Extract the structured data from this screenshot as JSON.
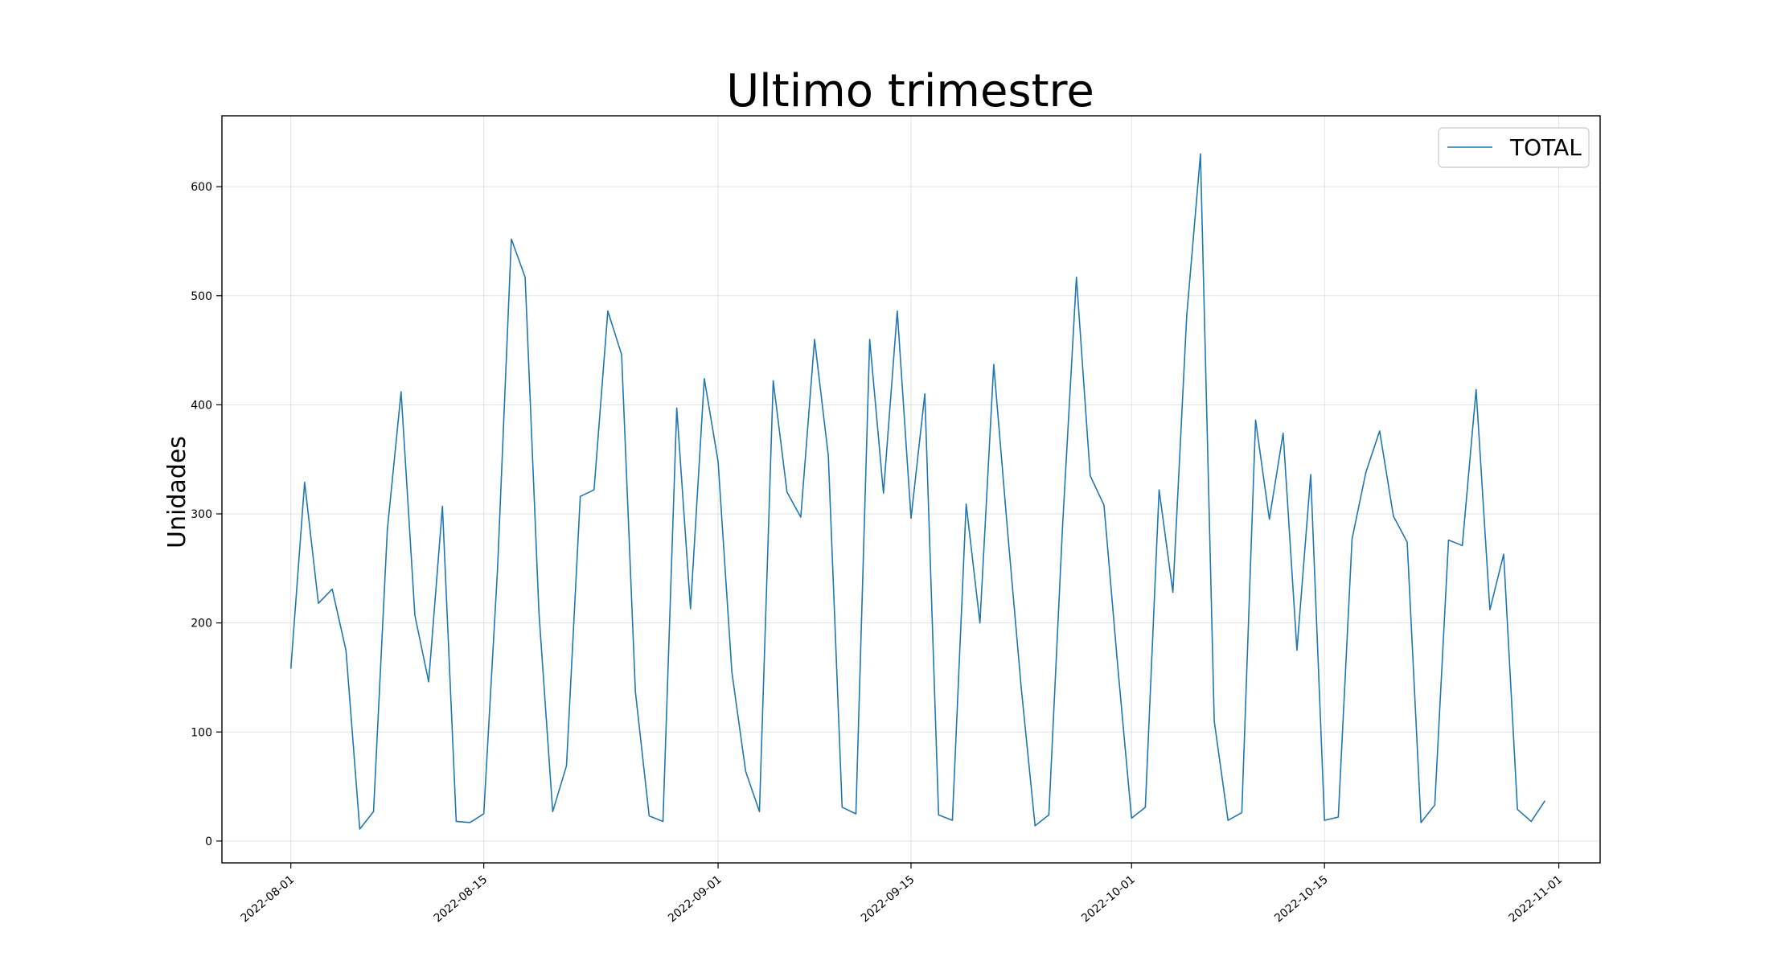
{
  "chart_data": {
    "type": "line",
    "title": "Ultimo trimestre",
    "xlabel": "",
    "ylabel": "Unidades",
    "xlim": [
      "2022-07-27",
      "2022-11-04"
    ],
    "ylim": [
      -20,
      665
    ],
    "x_ticks": [
      "2022-08-01",
      "2022-08-15",
      "2022-09-01",
      "2022-09-15",
      "2022-10-01",
      "2022-10-15",
      "2022-11-01"
    ],
    "y_ticks": [
      0,
      100,
      200,
      300,
      400,
      500,
      600
    ],
    "grid": true,
    "legend": {
      "position": "top-right"
    },
    "series": [
      {
        "name": "TOTAL",
        "color": "#1f77b4",
        "start_date": "2022-08-01",
        "values": [
          158,
          329,
          218,
          231,
          175,
          11,
          27,
          285,
          412,
          207,
          146,
          307,
          18,
          17,
          25,
          250,
          552,
          517,
          210,
          27,
          69,
          316,
          322,
          486,
          446,
          137,
          23,
          18,
          397,
          213,
          424,
          348,
          155,
          64,
          27,
          422,
          320,
          297,
          460,
          353,
          31,
          25,
          460,
          319,
          486,
          296,
          410,
          24,
          19,
          309,
          200,
          437,
          285,
          140,
          14,
          24,
          290,
          517,
          335,
          308,
          160,
          21,
          31,
          322,
          228,
          481,
          630,
          110,
          19,
          26,
          386,
          295,
          374,
          175,
          336,
          19,
          22,
          277,
          338,
          376,
          298,
          274,
          17,
          33,
          276,
          271,
          414,
          212,
          263,
          29,
          18,
          37
        ]
      }
    ]
  }
}
